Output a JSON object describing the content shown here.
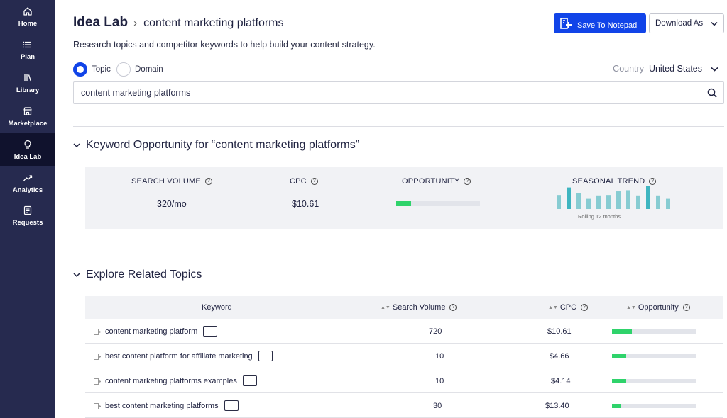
{
  "sidebar": {
    "items": [
      {
        "label": "Home",
        "icon": "home-icon"
      },
      {
        "label": "Plan",
        "icon": "list-icon"
      },
      {
        "label": "Library",
        "icon": "library-icon"
      },
      {
        "label": "Marketplace",
        "icon": "store-icon"
      },
      {
        "label": "Idea Lab",
        "icon": "lightbulb-icon",
        "active": true
      },
      {
        "label": "Analytics",
        "icon": "trend-icon"
      },
      {
        "label": "Requests",
        "icon": "document-icon"
      }
    ]
  },
  "header": {
    "breadcrumb_root": "Idea Lab",
    "breadcrumb_page": "content marketing platforms",
    "subtitle": "Research topics and competitor keywords to help build your content strategy.",
    "save_button": "Save To Notepad",
    "download_button": "Download As"
  },
  "mode": {
    "options": [
      "Topic",
      "Domain"
    ],
    "selected": "Topic"
  },
  "country": {
    "label": "Country",
    "value": "United States"
  },
  "search": {
    "value": "content marketing platforms"
  },
  "keyword_opportunity": {
    "title": "Keyword Opportunity for “content marketing platforms”",
    "metrics": {
      "search_volume_label": "SEARCH VOLUME",
      "search_volume_value": "320/mo",
      "cpc_label": "CPC",
      "cpc_value": "$10.61",
      "opportunity_label": "OPPORTUNITY",
      "opportunity_fraction": 0.18,
      "seasonal_trend_label": "SEASONAL TREND",
      "seasonal_trend_values": [
        0.62,
        0.95,
        0.7,
        0.45,
        0.6,
        0.62,
        0.78,
        0.83,
        0.6,
        1.0,
        0.6,
        0.45
      ],
      "seasonal_trend_caption": "Rolling 12 months"
    }
  },
  "related_topics": {
    "title": "Explore Related Topics",
    "columns": {
      "keyword": "Keyword",
      "search_volume": "Search Volume",
      "cpc": "CPC",
      "opportunity": "Opportunity"
    },
    "rows": [
      {
        "keyword": "content marketing platform",
        "volume": "720",
        "cpc": "$10.61",
        "opportunity": 0.24
      },
      {
        "keyword": "best content platform for affiliate marketing",
        "volume": "10",
        "cpc": "$4.66",
        "opportunity": 0.17
      },
      {
        "keyword": "content marketing platforms examples",
        "volume": "10",
        "cpc": "$4.14",
        "opportunity": 0.17
      },
      {
        "keyword": "best content marketing platforms",
        "volume": "30",
        "cpc": "$13.40",
        "opportunity": 0.1
      }
    ]
  },
  "colors": {
    "sidebar_bg": "#262a4f",
    "sidebar_active": "#10122d",
    "accent": "#1144e8",
    "opportunity_bar": "#2fd36b",
    "trend_bar": "#87ccd2",
    "trend_bar_highlight": "#3fb5c0"
  }
}
